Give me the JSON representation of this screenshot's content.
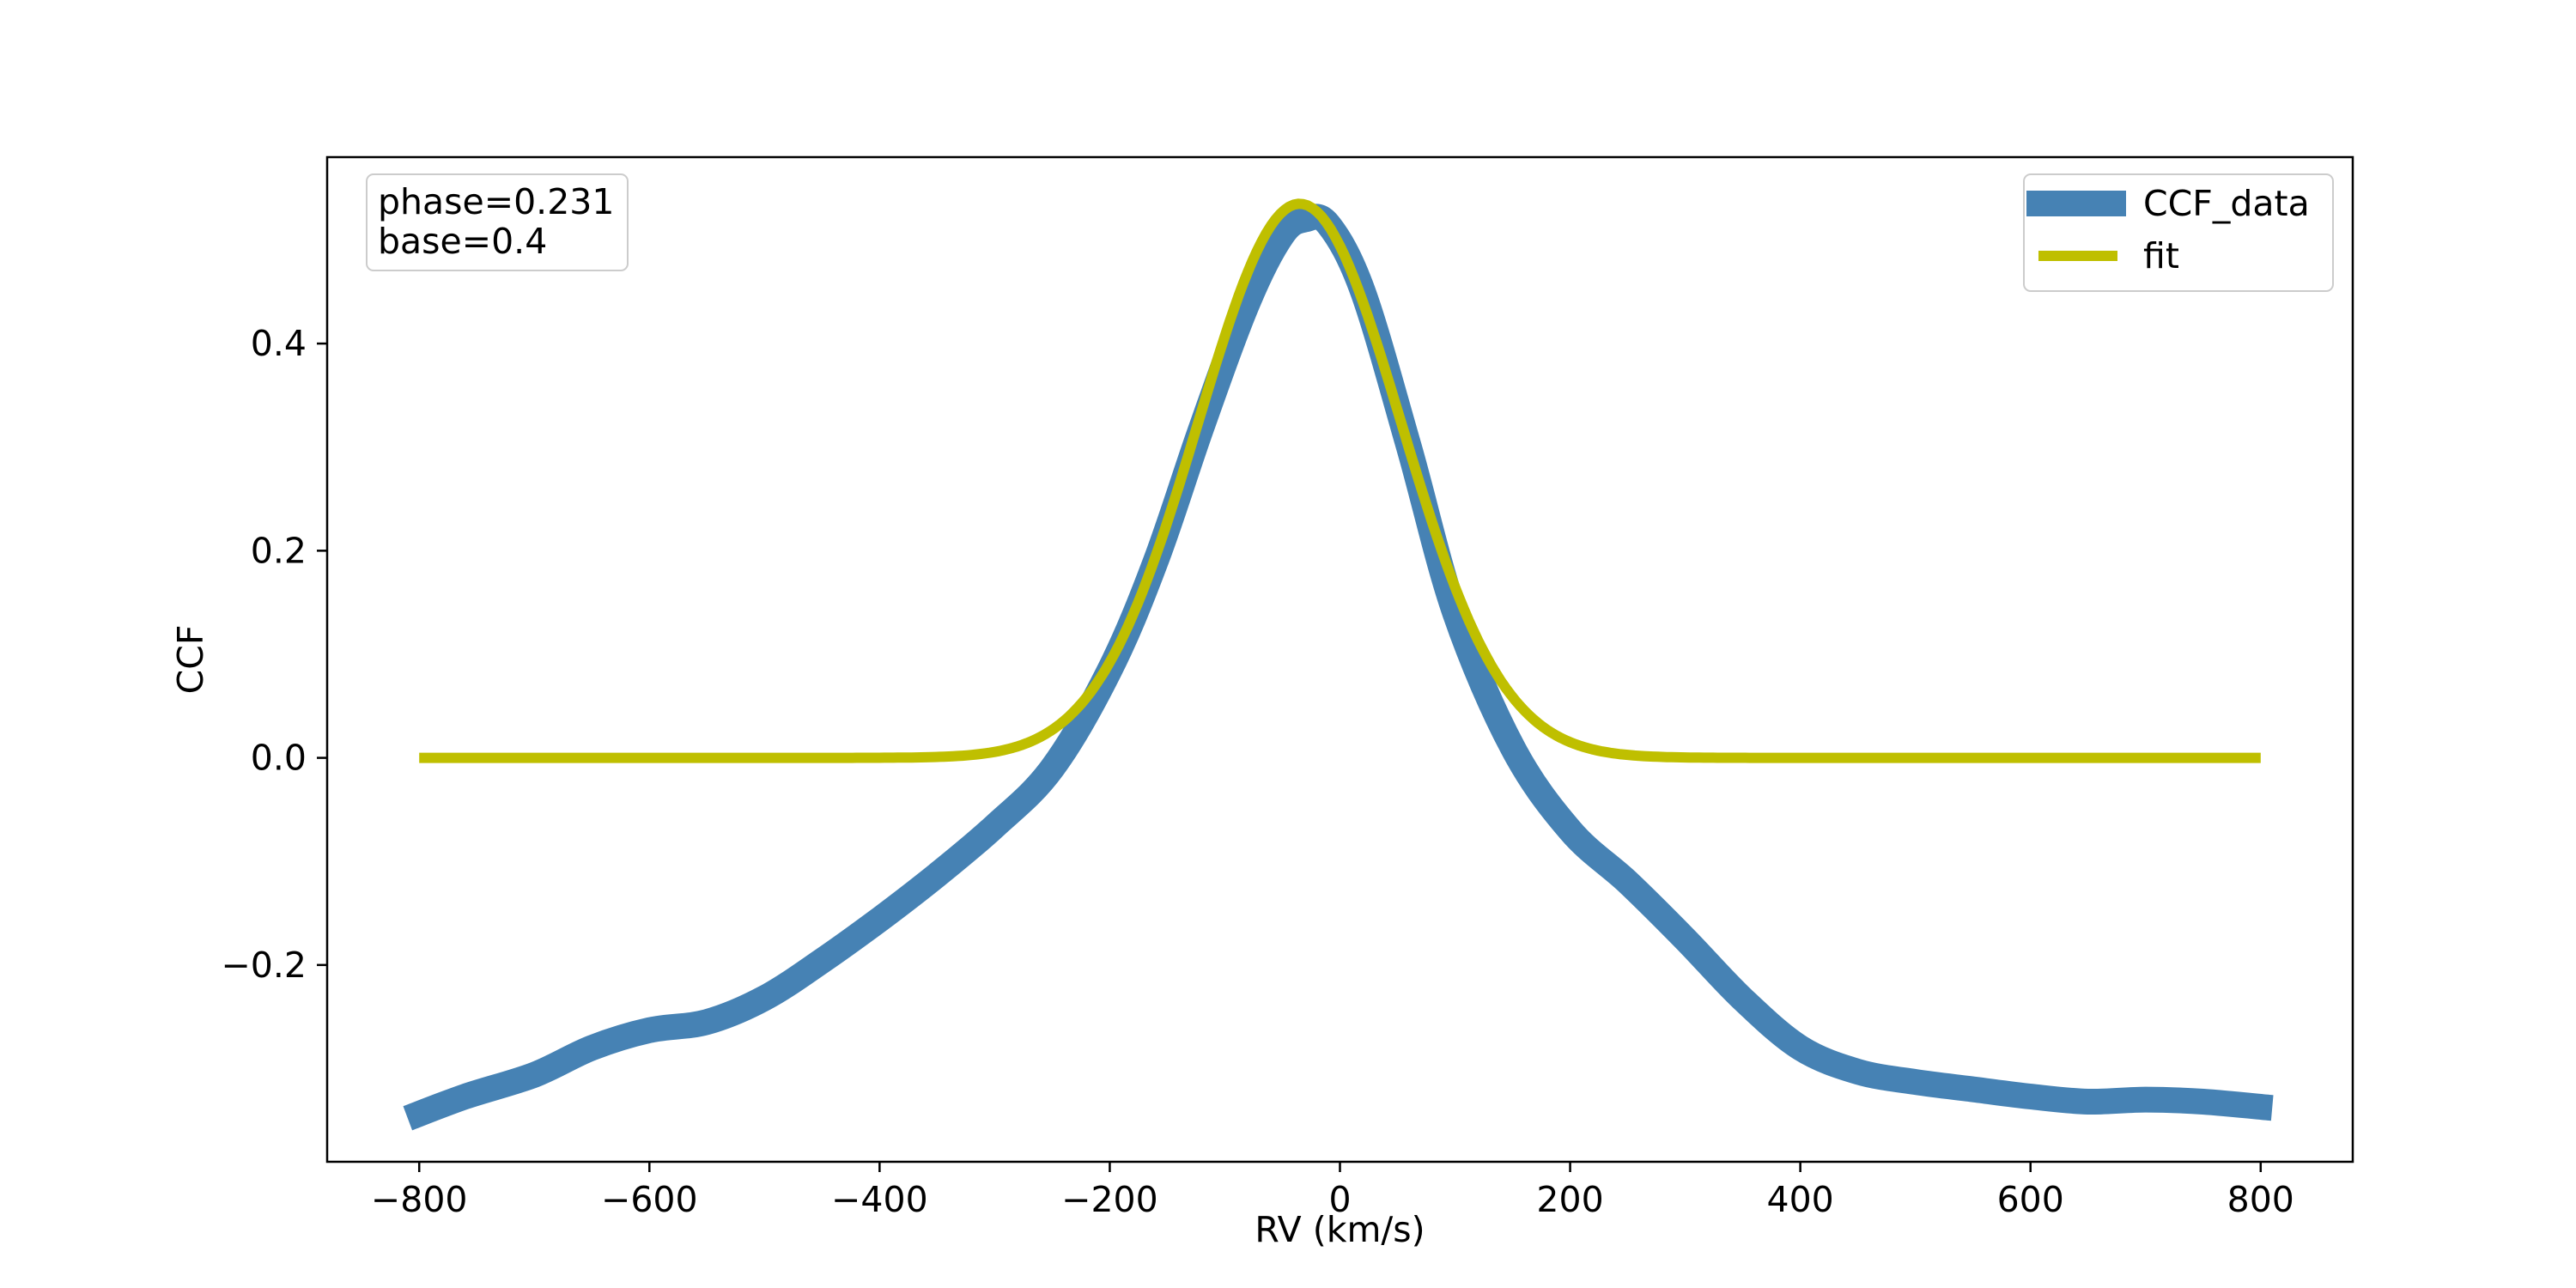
{
  "chart_data": {
    "type": "line",
    "title": "",
    "xlabel": "RV (km/s)",
    "ylabel": "CCF",
    "xlim": [
      -880,
      880
    ],
    "ylim": [
      -0.39,
      0.58
    ],
    "xticks": [
      -800,
      -600,
      -400,
      -200,
      0,
      200,
      400,
      600,
      800
    ],
    "xtick_labels": [
      "−800",
      "−600",
      "−400",
      "−200",
      "0",
      "200",
      "400",
      "600",
      "800"
    ],
    "yticks": [
      -0.2,
      0.0,
      0.2,
      0.4
    ],
    "ytick_labels": [
      "−0.2",
      "0.0",
      "0.2",
      "0.4"
    ],
    "grid": false,
    "legend_position": "top-right",
    "annotation": {
      "position": "top-left",
      "lines": [
        "phase=0.231",
        "base=0.4"
      ]
    },
    "series": [
      {
        "name": "CCF_data",
        "color": "#4682b4",
        "style": "thick",
        "x": [
          -810,
          -760,
          -700,
          -650,
          -600,
          -550,
          -500,
          -450,
          -400,
          -350,
          -300,
          -250,
          -200,
          -160,
          -120,
          -80,
          -50,
          -30,
          -10,
          20,
          60,
          100,
          150,
          200,
          250,
          300,
          350,
          400,
          450,
          500,
          550,
          600,
          650,
          700,
          750,
          810
        ],
        "y": [
          -0.348,
          -0.327,
          -0.306,
          -0.28,
          -0.263,
          -0.255,
          -0.232,
          -0.196,
          -0.156,
          -0.113,
          -0.066,
          -0.01,
          0.085,
          0.19,
          0.32,
          0.44,
          0.505,
          0.52,
          0.515,
          0.45,
          0.3,
          0.14,
          0.01,
          -0.07,
          -0.12,
          -0.175,
          -0.233,
          -0.28,
          -0.303,
          -0.313,
          -0.32,
          -0.327,
          -0.332,
          -0.33,
          -0.332,
          -0.338
        ]
      },
      {
        "name": "fit",
        "color": "#bfbf00",
        "style": "medium",
        "model": {
          "type": "gaussian",
          "amplitude": 0.535,
          "center": -35,
          "sigma": 88,
          "x_min": -800,
          "x_max": 800
        }
      }
    ]
  }
}
